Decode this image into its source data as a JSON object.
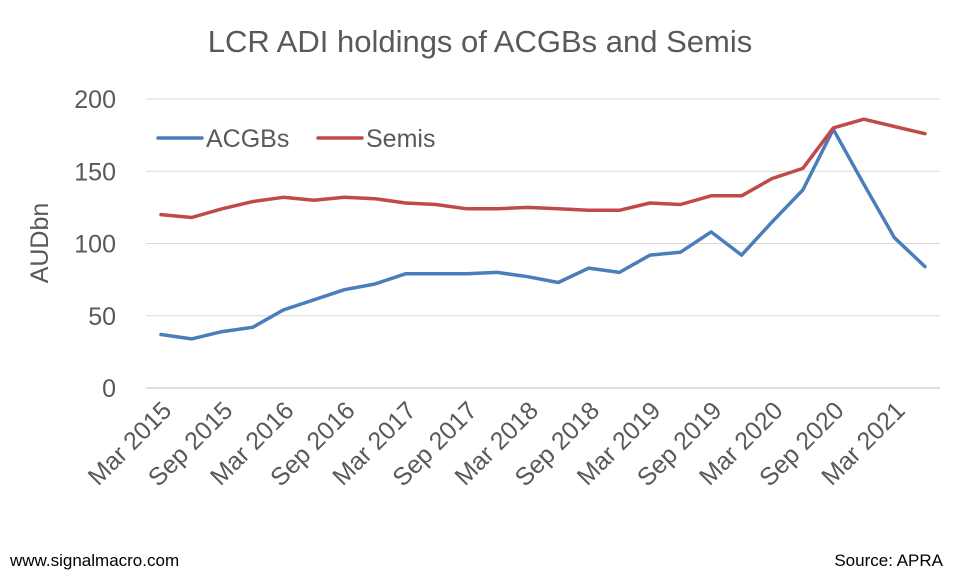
{
  "chart_data": {
    "type": "line",
    "title": "LCR ADI holdings of ACGBs and Semis",
    "ylabel": "AUDbn",
    "xlabel": "",
    "ylim": [
      0,
      200
    ],
    "yticks": [
      0,
      50,
      100,
      150,
      200
    ],
    "grid": true,
    "legend_position": "top-left",
    "tick_labels": [
      "Mar 2015",
      "Sep 2015",
      "Mar 2016",
      "Sep 2016",
      "Mar 2017",
      "Sep 2017",
      "Mar 2018",
      "Sep 2018",
      "Mar 2019",
      "Sep 2019",
      "Mar 2020",
      "Sep 2020",
      "Mar 2021"
    ],
    "x": [
      "Mar 2015",
      "Jun 2015",
      "Sep 2015",
      "Dec 2015",
      "Mar 2016",
      "Jun 2016",
      "Sep 2016",
      "Dec 2016",
      "Mar 2017",
      "Jun 2017",
      "Sep 2017",
      "Dec 2017",
      "Mar 2018",
      "Jun 2018",
      "Sep 2018",
      "Dec 2018",
      "Mar 2019",
      "Jun 2019",
      "Sep 2019",
      "Dec 2019",
      "Mar 2020",
      "Jun 2020",
      "Sep 2020",
      "Dec 2020",
      "Mar 2021",
      "Jun 2021"
    ],
    "series": [
      {
        "name": "ACGBs",
        "color": "#4a7ebb",
        "values": [
          37,
          34,
          39,
          42,
          54,
          61,
          68,
          72,
          79,
          79,
          79,
          80,
          77,
          73,
          83,
          80,
          92,
          94,
          108,
          92,
          115,
          137,
          179,
          141,
          104,
          84
        ]
      },
      {
        "name": "Semis",
        "color": "#be4b48",
        "values": [
          120,
          118,
          124,
          129,
          132,
          130,
          132,
          131,
          128,
          127,
          124,
          124,
          125,
          124,
          123,
          123,
          128,
          127,
          133,
          133,
          145,
          152,
          180,
          186,
          181,
          176
        ]
      }
    ]
  },
  "footer": {
    "website": "www.signalmacro.com",
    "source": "Source: APRA"
  }
}
